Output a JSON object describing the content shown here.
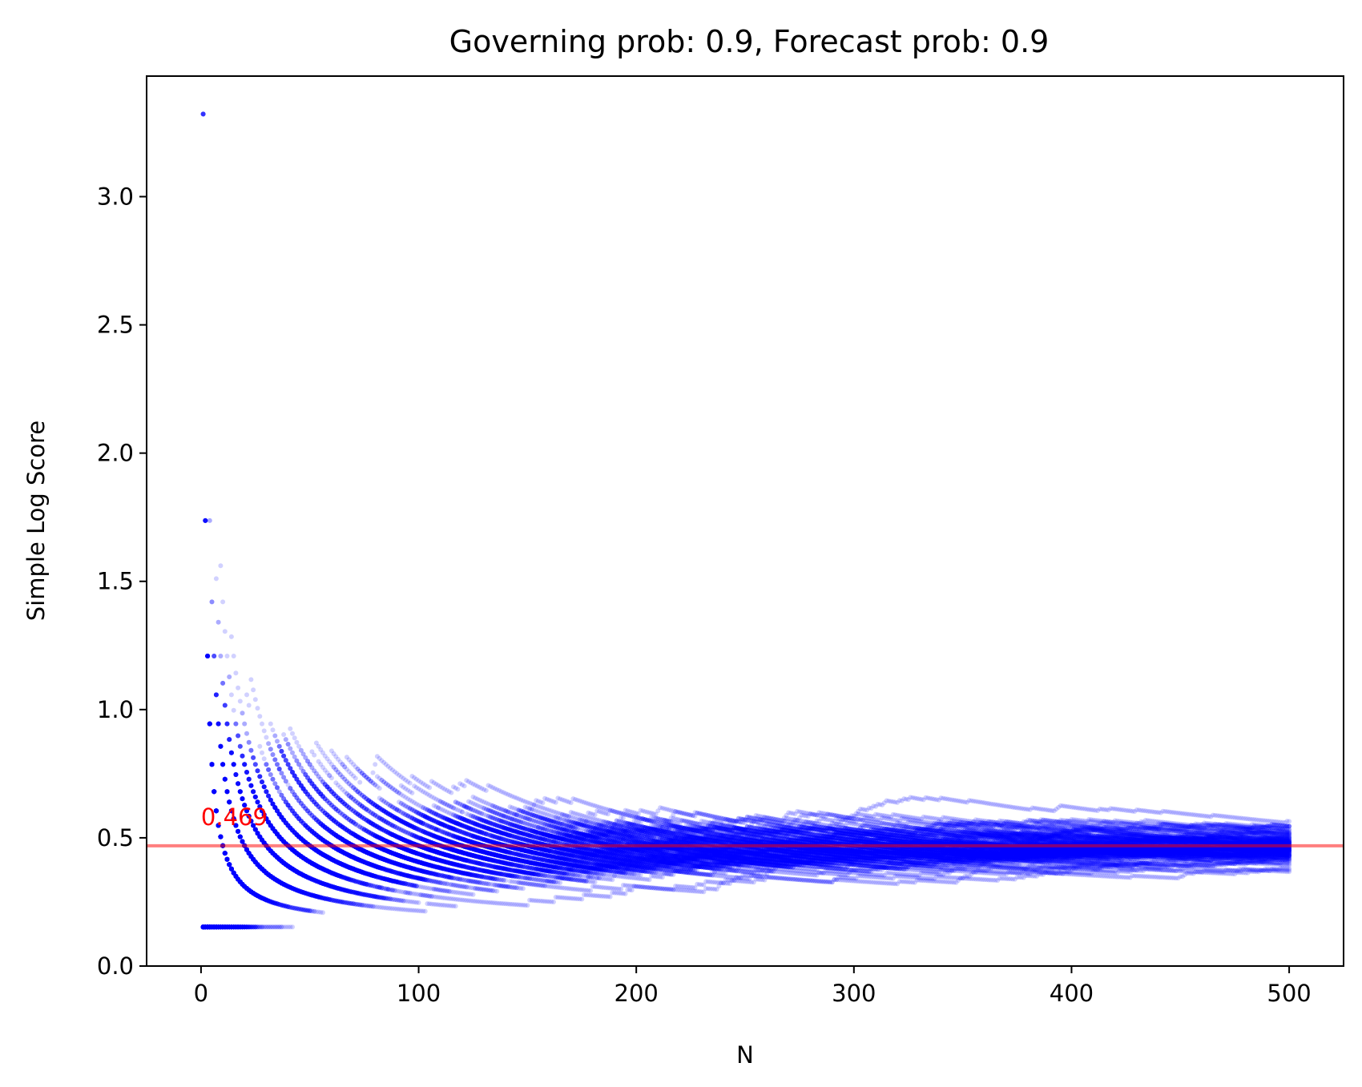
{
  "chart_data": {
    "type": "scatter",
    "title": "Governing prob: 0.9, Forecast prob: 0.9",
    "xlabel": "N",
    "ylabel": "Simple Log Score",
    "xlim": [
      -25,
      525
    ],
    "ylim": [
      0,
      3.47
    ],
    "x_ticks": [
      0,
      100,
      200,
      300,
      400,
      500
    ],
    "y_ticks": [
      0.0,
      0.5,
      1.0,
      1.5,
      2.0,
      2.5,
      3.0
    ],
    "x_tick_labels": [
      "0",
      "100",
      "200",
      "300",
      "400",
      "500"
    ],
    "y_tick_labels": [
      "0.0",
      "0.5",
      "1.0",
      "1.5",
      "2.0",
      "2.5",
      "3.0"
    ],
    "reference_line": {
      "y": 0.469,
      "label": "0.469",
      "color": "#ff0000",
      "opacity": 0.5
    },
    "point_color": "#0000ff",
    "grid": false,
    "legend": "none",
    "simulation": {
      "governing_prob": 0.9,
      "forecast_prob": 0.9,
      "n_max": 500,
      "n_runs": 100
    }
  }
}
